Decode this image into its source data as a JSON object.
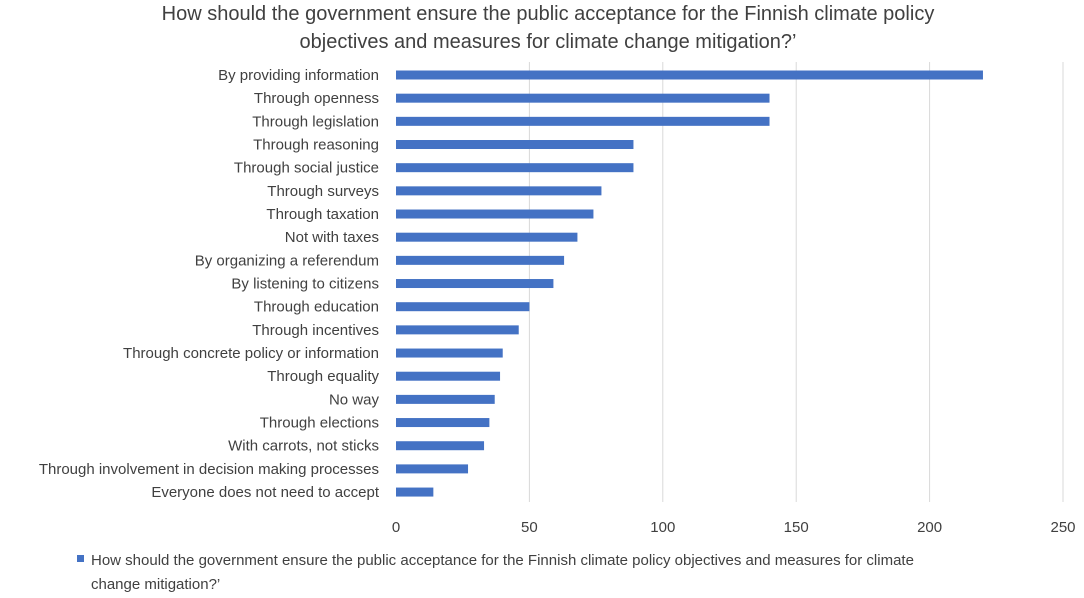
{
  "chart_data": {
    "type": "bar",
    "orientation": "horizontal",
    "title": "How should the government ensure the public acceptance for the Finnish climate policy objectives and measures for climate change mitigation?’",
    "title_lines": [
      "How should the government ensure the public acceptance for the Finnish climate policy",
      "objectives and measures for climate change mitigation?’"
    ],
    "categories": [
      "By providing information",
      "Through openness",
      "Through legislation",
      "Through reasoning",
      "Through social justice",
      "Through surveys",
      "Through taxation",
      "Not with taxes",
      "By organizing a referendum",
      "By listening to citizens",
      "Through education",
      "Through incentives",
      "Through concrete policy or information",
      "Through equality",
      "No way",
      "Through elections",
      "With carrots, not sticks",
      "Through involvement in decision making processes",
      "Everyone does not need to accept"
    ],
    "series": [
      {
        "name": "How should the government ensure the public acceptance for the Finnish climate policy objectives and measures for climate change mitigation?’",
        "values": [
          220,
          140,
          140,
          89,
          89,
          77,
          74,
          68,
          63,
          59,
          50,
          46,
          40,
          39,
          37,
          35,
          33,
          27,
          14
        ]
      }
    ],
    "xlim": [
      0,
      250
    ],
    "xticks": [
      0,
      50,
      100,
      150,
      200,
      250
    ],
    "grid": true,
    "legend_position": "bottom",
    "legend_lines": [
      "How should the government  ensure  the public acceptance for the Finnish climate policy objectives  and measures for climate",
      "change mitigation?’"
    ],
    "colors": {
      "bar": "#4472C4",
      "grid": "#D9D9D9",
      "text": "#404040"
    }
  }
}
